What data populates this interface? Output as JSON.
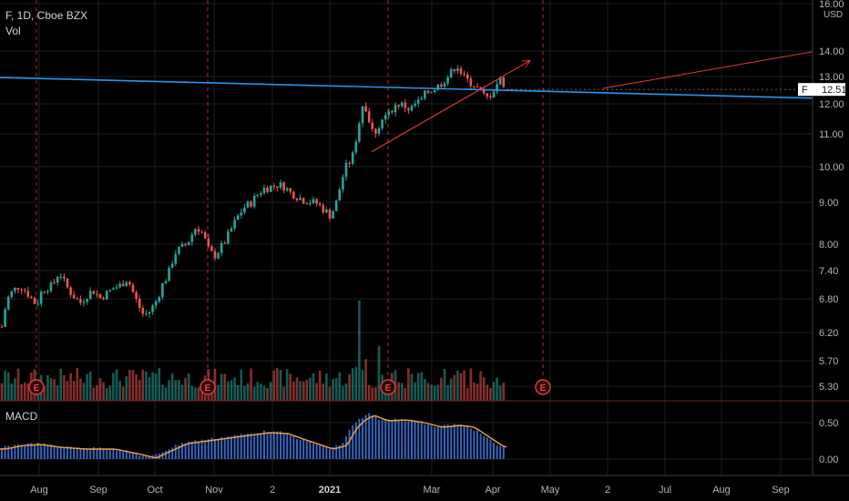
{
  "header": {
    "title": "F, 1D, Cboe BZX",
    "vol_label": "Vol",
    "macd_label": "MACD"
  },
  "axis": {
    "currency": "USD",
    "current_price_symbol": "F",
    "current_price": "12.51"
  },
  "colors": {
    "background": "#000000",
    "up": "#26a69a",
    "down": "#ef5350",
    "trendline": "#2196f3",
    "arrow": "#e53935",
    "macd_hist": "#3d6fd6",
    "macd_signal": "#f7a13a",
    "earnings": "#e53935",
    "grid": "#1e1e1e"
  },
  "chart_data": {
    "type": "candlestick",
    "y_scale": "log",
    "y_ticks": [
      "16.00",
      "14.00",
      "13.00",
      "12.00",
      "11.00",
      "10.00",
      "9.00",
      "8.00",
      "7.40",
      "6.80",
      "6.20",
      "5.70",
      "5.30"
    ],
    "macd_ticks": [
      "0.50",
      "0.00"
    ],
    "x_ticks": [
      "Aug",
      "Sep",
      "Oct",
      "Nov",
      "2",
      "2021",
      "Mar",
      "Apr",
      "May",
      "2",
      "Jul",
      "Aug",
      "Sep"
    ],
    "earnings_markers": [
      "E",
      "E",
      "E",
      "E"
    ],
    "close_path": [
      [
        0,
        6.1
      ],
      [
        5,
        6.6
      ],
      [
        10,
        6.9
      ],
      [
        15,
        7.0
      ],
      [
        22,
        7.1
      ],
      [
        30,
        6.95
      ],
      [
        40,
        6.7
      ],
      [
        45,
        6.95
      ],
      [
        50,
        7.05
      ],
      [
        58,
        7.1
      ],
      [
        65,
        7.4
      ],
      [
        72,
        7.1
      ],
      [
        80,
        6.9
      ],
      [
        88,
        6.75
      ],
      [
        95,
        6.9
      ],
      [
        102,
        7.0
      ],
      [
        110,
        6.85
      ],
      [
        118,
        6.95
      ],
      [
        125,
        7.05
      ],
      [
        132,
        7.1
      ],
      [
        140,
        7.25
      ],
      [
        145,
        7.0
      ],
      [
        152,
        6.7
      ],
      [
        158,
        6.5
      ],
      [
        165,
        6.6
      ],
      [
        172,
        6.8
      ],
      [
        178,
        7.1
      ],
      [
        185,
        7.35
      ],
      [
        192,
        7.8
      ],
      [
        198,
        7.9
      ],
      [
        205,
        8.0
      ],
      [
        210,
        8.2
      ],
      [
        215,
        8.4
      ],
      [
        220,
        8.35
      ],
      [
        225,
        8.1
      ],
      [
        230,
        7.8
      ],
      [
        236,
        7.75
      ],
      [
        242,
        7.9
      ],
      [
        248,
        8.1
      ],
      [
        255,
        8.4
      ],
      [
        262,
        8.7
      ],
      [
        268,
        8.9
      ],
      [
        275,
        9.0
      ],
      [
        280,
        9.15
      ],
      [
        285,
        9.3
      ],
      [
        290,
        9.4
      ],
      [
        298,
        9.45
      ],
      [
        305,
        9.5
      ],
      [
        312,
        9.45
      ],
      [
        318,
        9.3
      ],
      [
        325,
        9.2
      ],
      [
        332,
        9.1
      ],
      [
        340,
        9.05
      ],
      [
        348,
        9.0
      ],
      [
        355,
        8.85
      ],
      [
        362,
        8.7
      ],
      [
        368,
        8.9
      ],
      [
        372,
        9.3
      ],
      [
        376,
        9.7
      ],
      [
        380,
        10.0
      ],
      [
        385,
        10.2
      ],
      [
        390,
        10.5
      ],
      [
        394,
        11.4
      ],
      [
        398,
        12.0
      ],
      [
        402,
        11.8
      ],
      [
        406,
        11.3
      ],
      [
        410,
        11.0
      ],
      [
        415,
        11.2
      ],
      [
        420,
        11.5
      ],
      [
        426,
        11.6
      ],
      [
        432,
        11.9
      ],
      [
        438,
        12.0
      ],
      [
        445,
        11.9
      ],
      [
        450,
        11.8
      ],
      [
        456,
        12.0
      ],
      [
        462,
        12.1
      ],
      [
        468,
        12.4
      ],
      [
        474,
        12.5
      ],
      [
        480,
        12.6
      ],
      [
        486,
        12.8
      ],
      [
        492,
        13.0
      ],
      [
        497,
        13.2
      ],
      [
        501,
        13.5
      ],
      [
        505,
        13.2
      ],
      [
        510,
        12.9
      ],
      [
        515,
        12.8
      ],
      [
        520,
        12.7
      ],
      [
        525,
        12.5
      ],
      [
        530,
        12.3
      ],
      [
        535,
        12.2
      ],
      [
        540,
        12.4
      ],
      [
        545,
        12.7
      ],
      [
        550,
        12.9
      ],
      [
        555,
        12.6
      ],
      [
        558,
        12.51
      ]
    ],
    "blue_trendline": {
      "start": [
        0,
        12.95
      ],
      "end": [
        892,
        12.2
      ]
    },
    "channel_line": {
      "start": [
        408,
        10.45
      ],
      "end": [
        550,
        12.95
      ]
    },
    "arrow_short": {
      "start": [
        408,
        10.45
      ],
      "end": [
        582,
        13.6
      ]
    },
    "arrow_long": {
      "start": [
        662,
        12.55
      ],
      "end": [
        892,
        13.95
      ]
    }
  }
}
